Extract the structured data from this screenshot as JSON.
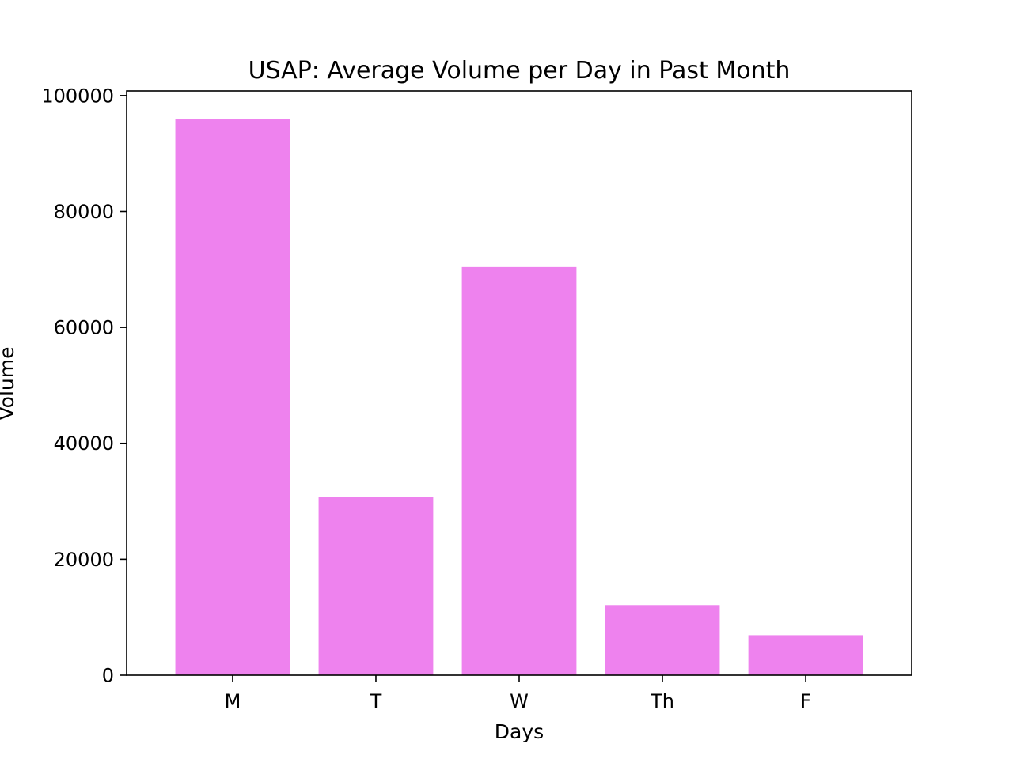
{
  "chart_data": {
    "type": "bar",
    "title": "USAP: Average Volume per Day in Past Month",
    "xlabel": "Days",
    "ylabel": "Volume",
    "categories": [
      "M",
      "T",
      "W",
      "Th",
      "F"
    ],
    "values": [
      96000,
      30800,
      70400,
      12100,
      6900
    ],
    "ylim": [
      0,
      100800
    ],
    "yticks": [
      0,
      20000,
      40000,
      60000,
      80000,
      100000
    ],
    "ytick_labels": [
      "0",
      "20000",
      "40000",
      "60000",
      "80000",
      "100000"
    ],
    "bar_color": "#ee82ee",
    "grid": false,
    "legend": false
  }
}
